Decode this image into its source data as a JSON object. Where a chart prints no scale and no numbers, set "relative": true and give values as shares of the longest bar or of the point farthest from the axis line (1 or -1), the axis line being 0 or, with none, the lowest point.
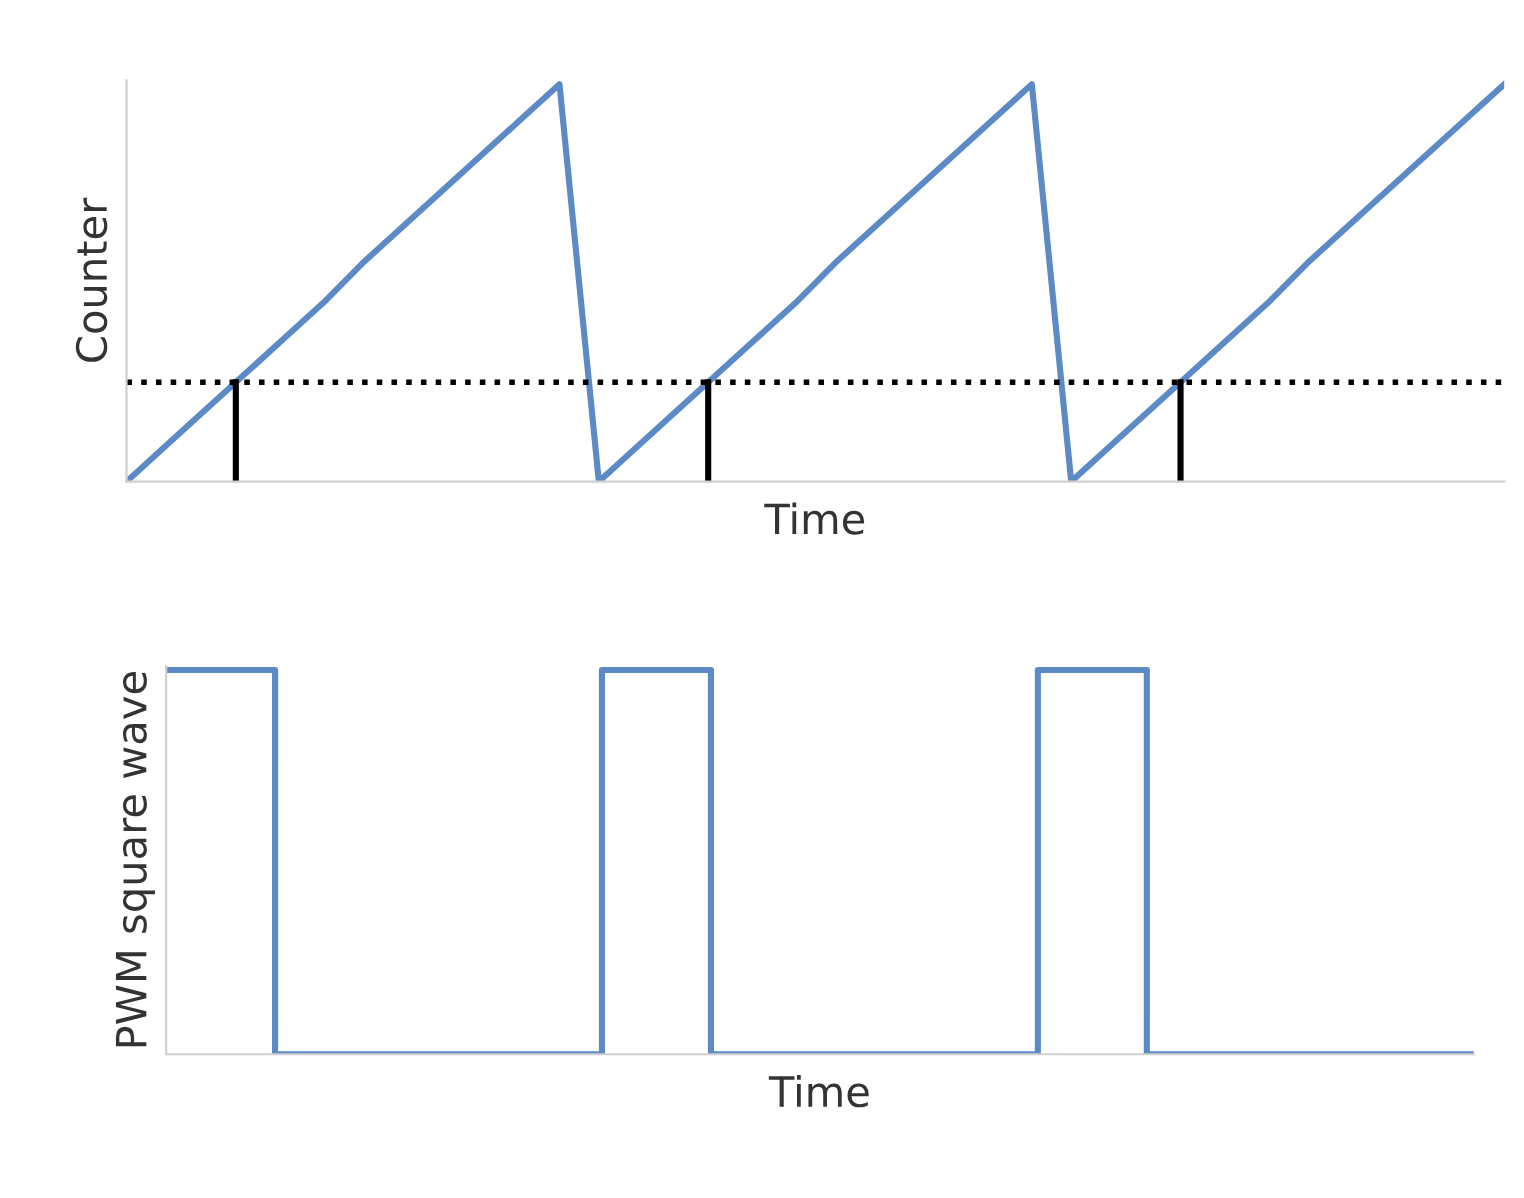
{
  "chart_data": [
    {
      "type": "line",
      "relative": true,
      "xlabel": "Time",
      "ylabel": "Counter",
      "categories": [
        null,
        null,
        null,
        null,
        null,
        null,
        null,
        null,
        null,
        null,
        null,
        null,
        null,
        null,
        null,
        null,
        null,
        null,
        null,
        null,
        null,
        null,
        null,
        null,
        null,
        null,
        null,
        null,
        null,
        null,
        null,
        null,
        null,
        null,
        null,
        null
      ],
      "series": [
        {
          "color": "#5b8ac6",
          "values": [
            0,
            0.09,
            0.18,
            0.27,
            0.36,
            0.45,
            0.55,
            0.64,
            0.73,
            0.82,
            0.91,
            1,
            0,
            0.09,
            0.18,
            0.27,
            0.36,
            0.45,
            0.55,
            0.64,
            0.73,
            0.82,
            0.91,
            1,
            0,
            0.09,
            0.18,
            0.27,
            0.36,
            0.45,
            0.55,
            0.64,
            0.73,
            0.82,
            0.91,
            1
          ]
        }
      ],
      "ref_lines": [
        {
          "axis": "y",
          "value": 0.25,
          "color": "#000000",
          "line_style": "dotted"
        }
      ]
    },
    {
      "type": "step",
      "relative": true,
      "xlabel": "Time",
      "ylabel": "PWM square wave",
      "categories": [
        null,
        null,
        null,
        null,
        null,
        null,
        null,
        null,
        null,
        null,
        null,
        null,
        null
      ],
      "series": [
        {
          "color": "#5b8ac6",
          "values": [
            1,
            0,
            0,
            0,
            1,
            0,
            0,
            0,
            1,
            0,
            0,
            0,
            0
          ]
        }
      ]
    }
  ]
}
